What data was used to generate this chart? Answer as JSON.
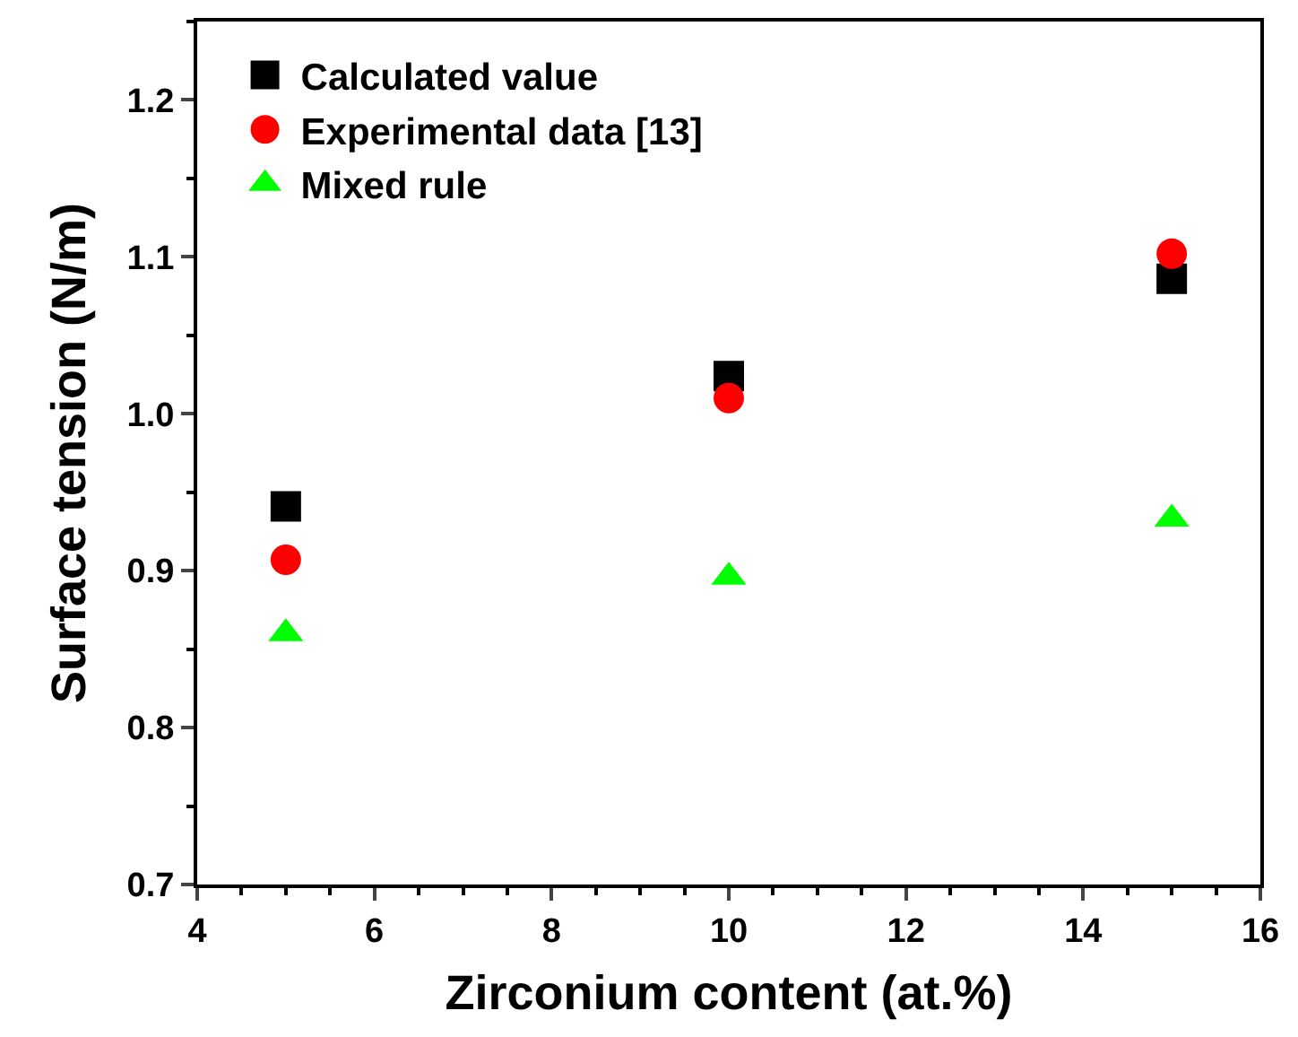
{
  "chart_data": {
    "type": "scatter",
    "xlabel": "Zirconium content (at.%)",
    "ylabel": "Surface tension (N/m)",
    "x": [
      5,
      10,
      15
    ],
    "series": [
      {
        "name": "Calculated value",
        "color": "#000000",
        "marker": "square",
        "values": [
          0.941,
          1.024,
          1.086
        ]
      },
      {
        "name": "Experimental data [13]",
        "color": "#ff0000",
        "marker": "circle",
        "values": [
          0.907,
          1.01,
          1.102
        ]
      },
      {
        "name": "Mixed rule",
        "color": "#00ff00",
        "marker": "triangle",
        "values": [
          0.86,
          0.896,
          0.933
        ]
      }
    ],
    "xlim": [
      4,
      16
    ],
    "xticks": [
      4,
      6,
      8,
      10,
      12,
      14,
      16
    ],
    "ylim": [
      0.7,
      1.25
    ],
    "yticks": [
      {
        "value": 0.7,
        "label": "0.7"
      },
      {
        "value": 0.8,
        "label": "0.8"
      },
      {
        "value": 0.9,
        "label": "0.9"
      },
      {
        "value": 1.0,
        "label": "1.0"
      },
      {
        "value": 1.1,
        "label": "1.1"
      },
      {
        "value": 1.2,
        "label": "1.2"
      }
    ],
    "legend": "top left"
  }
}
